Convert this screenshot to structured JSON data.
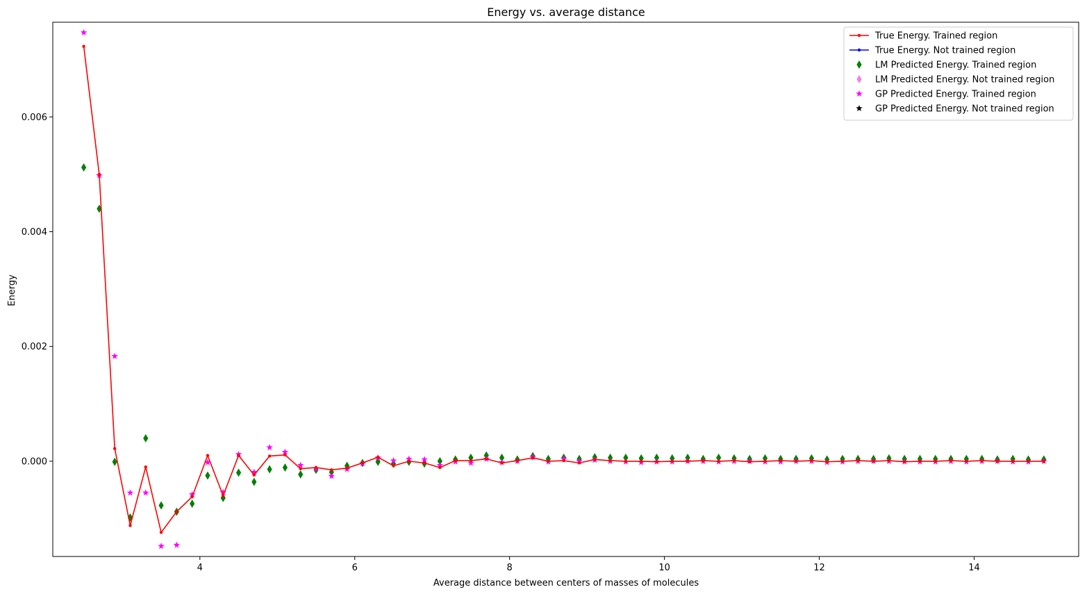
{
  "chart_data": {
    "type": "scatter",
    "title": "Energy vs. average distance",
    "xlabel": "Average distance between centers of masses of molecules",
    "ylabel": "Energy",
    "xlim": [
      2.1,
      15.35
    ],
    "ylim": [
      -0.00166,
      0.00765
    ],
    "xticks": [
      4,
      6,
      8,
      10,
      12,
      14
    ],
    "yticks": [
      0.0,
      0.002,
      0.004,
      0.006
    ],
    "ytick_labels": [
      "0.000",
      "0.002",
      "0.004",
      "0.006"
    ],
    "grid": false,
    "legend_position": "top-right",
    "x": [
      2.5,
      2.7,
      2.9,
      3.1,
      3.3,
      3.5,
      3.7,
      3.9,
      4.1,
      4.3,
      4.5,
      4.7,
      4.9,
      5.1,
      5.3,
      5.5,
      5.7,
      5.9,
      6.1,
      6.3,
      6.5,
      6.7,
      6.9,
      7.1,
      7.3,
      7.5,
      7.7,
      7.9,
      8.1,
      8.3,
      8.5,
      8.7,
      8.9,
      9.1,
      9.3,
      9.5,
      9.7,
      9.9,
      10.1,
      10.3,
      10.5,
      10.7,
      10.9,
      11.1,
      11.3,
      11.5,
      11.7,
      11.9,
      12.1,
      12.3,
      12.5,
      12.7,
      12.9,
      13.1,
      13.3,
      13.5,
      13.7,
      13.9,
      14.1,
      14.3,
      14.5,
      14.7,
      14.9
    ],
    "series": [
      {
        "name": "True Energy. Trained region",
        "style": "line-dot",
        "color": "#ff0000",
        "values": [
          0.00723,
          0.005,
          0.00022,
          -0.00112,
          -0.0001,
          -0.00124,
          -0.00088,
          -0.00062,
          0.0001,
          -0.0006,
          0.0001,
          -0.00024,
          9e-05,
          0.00011,
          -0.00013,
          -0.00011,
          -0.00015,
          -0.00012,
          -3e-05,
          7e-05,
          -8e-05,
          0.0,
          -3e-05,
          -0.00011,
          1e-05,
          1e-05,
          4e-05,
          -3e-05,
          1e-05,
          6e-05,
          0.0,
          1e-05,
          -3e-05,
          3e-05,
          1e-05,
          0.0,
          0.0,
          -1e-05,
          0.0,
          0.0,
          1e-05,
          0.0,
          1e-05,
          -1e-05,
          0.0,
          1e-05,
          0.0,
          1e-05,
          -1e-05,
          0.0,
          1e-05,
          0.0,
          1e-05,
          -1e-05,
          0.0,
          0.0,
          1e-05,
          0.0,
          1e-05,
          0.0,
          0.0,
          0.0,
          0.0
        ]
      },
      {
        "name": "True Energy. Not trained region",
        "style": "line-dot",
        "color": "#0000ff",
        "values": []
      },
      {
        "name": "LM Predicted Energy. Trained region",
        "style": "thin-diamond",
        "color": "#008000",
        "values": [
          0.00512,
          0.0044,
          -1e-05,
          -0.00098,
          0.0004,
          -0.00077,
          -0.00088,
          -0.00074,
          -0.00025,
          -0.00064,
          -0.0002,
          -0.00036,
          -0.00014,
          -0.00011,
          -0.00023,
          -0.00015,
          -0.00019,
          -8e-05,
          -3e-05,
          -1e-05,
          -4e-05,
          -1e-05,
          -4e-05,
          0.0,
          3e-05,
          6e-05,
          0.0001,
          6e-05,
          3e-05,
          9e-05,
          4e-05,
          6e-05,
          4e-05,
          7e-05,
          6e-05,
          6e-05,
          5e-05,
          6e-05,
          5e-05,
          6e-05,
          4e-05,
          6e-05,
          5e-05,
          4e-05,
          5e-05,
          4e-05,
          4e-05,
          5e-05,
          3e-05,
          4e-05,
          4e-05,
          4e-05,
          5e-05,
          4e-05,
          4e-05,
          4e-05,
          4e-05,
          4e-05,
          4e-05,
          3e-05,
          4e-05,
          3e-05,
          3e-05
        ]
      },
      {
        "name": "LM Predicted Energy. Not trained region",
        "style": "thin-diamond",
        "color": "#ee82ee",
        "values": []
      },
      {
        "name": "GP Predicted Energy. Trained region",
        "style": "star",
        "color": "#ff00ff",
        "values": [
          0.00747,
          0.00498,
          0.00183,
          -0.00055,
          -0.00055,
          -0.00148,
          -0.00146,
          -0.00058,
          -2e-05,
          -0.00054,
          0.00012,
          -0.00019,
          0.00024,
          0.00016,
          -7e-05,
          -0.00013,
          -0.00026,
          -0.00014,
          -4e-05,
          6e-05,
          1e-05,
          4e-05,
          3e-05,
          -7e-05,
          -1e-05,
          -3e-05,
          4e-05,
          -2e-05,
          0.0,
          7e-05,
          -1e-05,
          4e-05,
          0.0,
          2e-05,
          0.0,
          -1e-05,
          -2e-05,
          -1e-05,
          -1e-05,
          0.0,
          0.0,
          -1e-05,
          0.0,
          0.0,
          -1e-05,
          -1e-05,
          0.0,
          0.0,
          -2e-05,
          -1e-05,
          0.0,
          0.0,
          0.0,
          -1e-05,
          -1e-05,
          -1e-05,
          0.0,
          -1e-05,
          0.0,
          0.0,
          -1e-05,
          -1e-05,
          0.0
        ]
      },
      {
        "name": "GP Predicted Energy. Not trained region",
        "style": "star",
        "color": "#000000",
        "values": []
      }
    ]
  }
}
